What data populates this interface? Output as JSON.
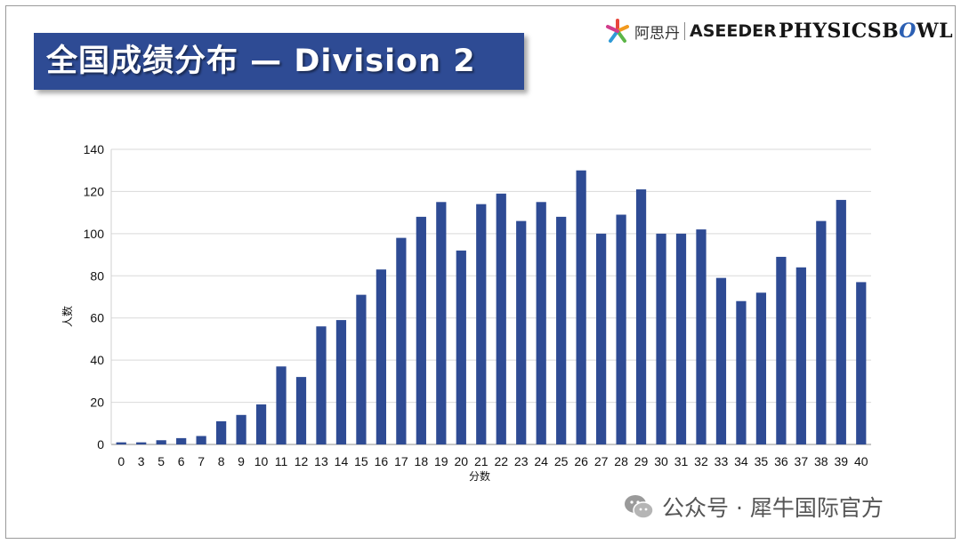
{
  "title": "全国成绩分布 — Division 2",
  "brands": {
    "aseeder_cn": "阿思丹",
    "aseeder_en": "ASEEDER",
    "physicsbowl_pre": "PHYSICSB",
    "physicsbowl_o": "O",
    "physicsbowl_post": "WL"
  },
  "watermark": "公众号 · 犀牛国际官方",
  "colors": {
    "bar": "#2e4b94",
    "banner": "#2e4b94",
    "grid": "#d9d9d9"
  },
  "chart_data": {
    "type": "bar",
    "categories": [
      "0",
      "3",
      "5",
      "6",
      "7",
      "8",
      "9",
      "10",
      "11",
      "12",
      "13",
      "14",
      "15",
      "16",
      "17",
      "18",
      "19",
      "20",
      "21",
      "22",
      "23",
      "24",
      "25",
      "26",
      "27",
      "28",
      "29",
      "30",
      "31",
      "32",
      "33",
      "34",
      "35",
      "36",
      "37",
      "38",
      "39",
      "40"
    ],
    "values": [
      1,
      1,
      2,
      3,
      4,
      11,
      14,
      19,
      37,
      32,
      56,
      59,
      71,
      83,
      98,
      108,
      115,
      92,
      114,
      119,
      106,
      115,
      108,
      130,
      100,
      109,
      121,
      100,
      100,
      102,
      79,
      68,
      72,
      89,
      84,
      106,
      116,
      77
    ],
    "xlabel": "分数",
    "ylabel": "人数",
    "ylim": [
      0,
      140
    ],
    "yticks": [
      0,
      20,
      40,
      60,
      80,
      100,
      120,
      140
    ],
    "grid": true,
    "legend": "none"
  }
}
